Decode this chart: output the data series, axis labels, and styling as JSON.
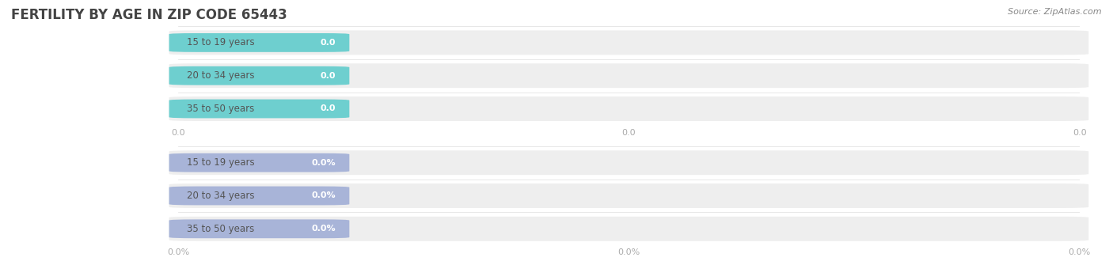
{
  "title": "FERTILITY BY AGE IN ZIP CODE 65443",
  "source_text": "Source: ZipAtlas.com",
  "top_section": {
    "categories": [
      "15 to 19 years",
      "20 to 34 years",
      "35 to 50 years"
    ],
    "values": [
      0.0,
      0.0,
      0.0
    ],
    "bar_color": "#6ECFCF",
    "label_color": "#6ECFCF",
    "value_label_color": "#ffffff",
    "tick_values": [
      0.0,
      0.0,
      0.0
    ],
    "tick_labels": [
      "0.0",
      "0.0",
      "0.0"
    ],
    "x_tick_positions": [
      0.0,
      0.5,
      1.0
    ]
  },
  "bottom_section": {
    "categories": [
      "15 to 19 years",
      "20 to 34 years",
      "35 to 50 years"
    ],
    "values": [
      0.0,
      0.0,
      0.0
    ],
    "bar_color": "#A8B4D8",
    "label_color": "#A8B4D8",
    "value_label_color": "#ffffff",
    "tick_labels": [
      "0.0%",
      "0.0%",
      "0.0%"
    ]
  },
  "bg_bar_color": "#eeeeee",
  "title_color": "#444444",
  "tick_label_color": "#aaaaaa",
  "bar_height": 0.55,
  "bg_bar_height": 0.72,
  "figure_width": 14.06,
  "figure_height": 3.3,
  "dpi": 100
}
